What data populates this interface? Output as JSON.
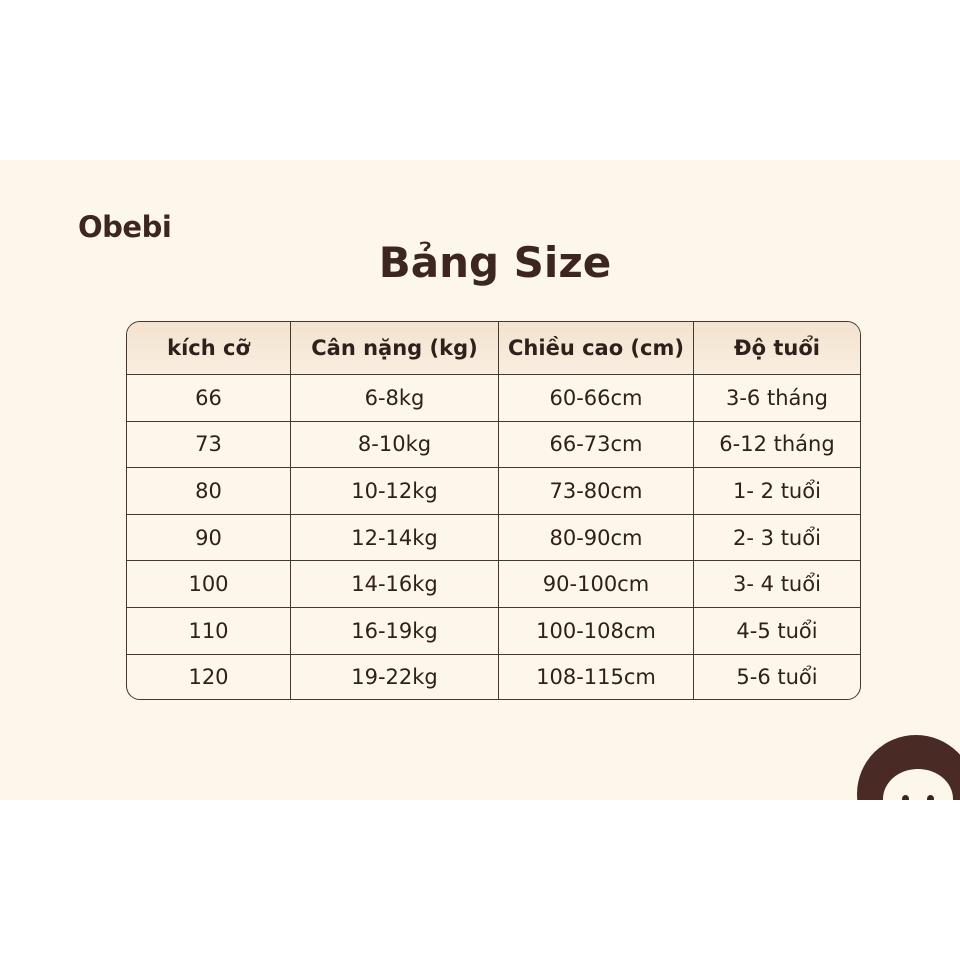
{
  "brand": "Obebi",
  "title": "Bảng Size",
  "table": {
    "headers": [
      "kích cỡ",
      "Cân nặng (kg)",
      "Chiều cao (cm)",
      "Độ tuổi"
    ],
    "rows": [
      [
        "66",
        "6-8kg",
        "60-66cm",
        "3-6 tháng"
      ],
      [
        "73",
        "8-10kg",
        "66-73cm",
        "6-12 tháng"
      ],
      [
        "80",
        "10-12kg",
        "73-80cm",
        "1- 2 tuổi"
      ],
      [
        "90",
        "12-14kg",
        "80-90cm",
        "2- 3 tuổi"
      ],
      [
        "100",
        "14-16kg",
        "90-100cm",
        "3- 4 tuổi"
      ],
      [
        "110",
        "16-19kg",
        "100-108cm",
        "4-5 tuổi"
      ],
      [
        "120",
        "19-22kg",
        "108-115cm",
        "5-6 tuổi"
      ]
    ]
  },
  "colors": {
    "background": "#fdf6ea",
    "text": "#3d2620",
    "header": "#f3e3cf",
    "mascot": "#4a2a25"
  }
}
